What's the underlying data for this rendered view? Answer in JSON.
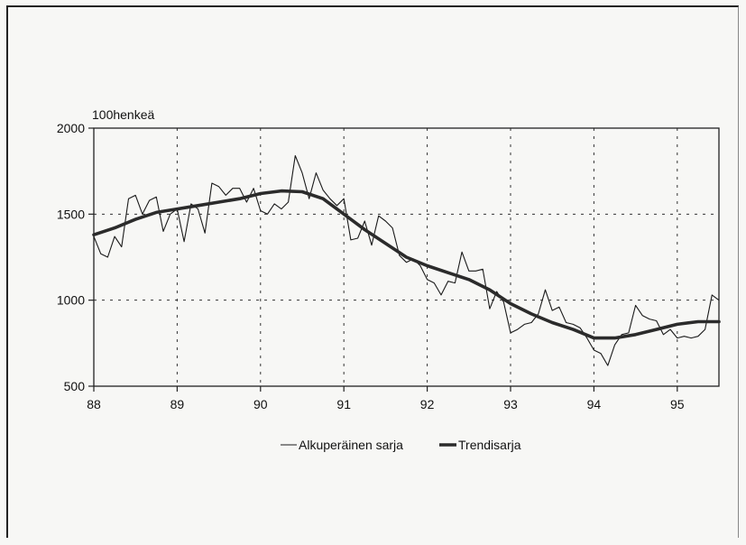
{
  "chart_data": {
    "type": "line",
    "title": "",
    "xlabel": "",
    "ylabel": "100henkeä",
    "xlim": [
      88,
      95.5
    ],
    "ylim": [
      500,
      2000
    ],
    "x_ticks": [
      88,
      89,
      90,
      91,
      92,
      93,
      94,
      95
    ],
    "x_tick_labels": [
      "88",
      "89",
      "90",
      "91",
      "92",
      "93",
      "94",
      "95"
    ],
    "y_ticks": [
      500,
      1000,
      1500,
      2000
    ],
    "y_tick_labels": [
      "500",
      "1000",
      "1500",
      "2000"
    ],
    "grid": "dashed",
    "legend_position": "bottom",
    "series": [
      {
        "name": "Alkuperäinen sarja",
        "style": "thin",
        "color": "#1a1a1a",
        "x": [
          88.0,
          88.083,
          88.167,
          88.25,
          88.333,
          88.417,
          88.5,
          88.583,
          88.667,
          88.75,
          88.833,
          88.917,
          89.0,
          89.083,
          89.167,
          89.25,
          89.333,
          89.417,
          89.5,
          89.583,
          89.667,
          89.75,
          89.833,
          89.917,
          90.0,
          90.083,
          90.167,
          90.25,
          90.333,
          90.417,
          90.5,
          90.583,
          90.667,
          90.75,
          90.833,
          90.917,
          91.0,
          91.083,
          91.167,
          91.25,
          91.333,
          91.417,
          91.5,
          91.583,
          91.667,
          91.75,
          91.833,
          91.917,
          92.0,
          92.083,
          92.167,
          92.25,
          92.333,
          92.417,
          92.5,
          92.583,
          92.667,
          92.75,
          92.833,
          92.917,
          93.0,
          93.083,
          93.167,
          93.25,
          93.333,
          93.417,
          93.5,
          93.583,
          93.667,
          93.75,
          93.833,
          93.917,
          94.0,
          94.083,
          94.167,
          94.25,
          94.333,
          94.417,
          94.5,
          94.583,
          94.667,
          94.75,
          94.833,
          94.917,
          95.0,
          95.083,
          95.167,
          95.25,
          95.333,
          95.417,
          95.5
        ],
        "y": [
          1370,
          1270,
          1250,
          1370,
          1310,
          1590,
          1610,
          1500,
          1580,
          1600,
          1400,
          1500,
          1530,
          1340,
          1560,
          1530,
          1390,
          1680,
          1660,
          1610,
          1650,
          1650,
          1570,
          1650,
          1520,
          1500,
          1560,
          1530,
          1570,
          1840,
          1740,
          1590,
          1740,
          1640,
          1590,
          1550,
          1590,
          1350,
          1360,
          1460,
          1320,
          1490,
          1460,
          1420,
          1260,
          1220,
          1240,
          1200,
          1120,
          1100,
          1030,
          1110,
          1100,
          1280,
          1170,
          1170,
          1180,
          950,
          1050,
          990,
          810,
          830,
          860,
          870,
          920,
          1060,
          940,
          960,
          870,
          860,
          840,
          780,
          710,
          690,
          620,
          740,
          800,
          810,
          970,
          910,
          890,
          880,
          800,
          830,
          780,
          790,
          780,
          790,
          830,
          1030,
          1000
        ]
      },
      {
        "name": "Trendisarja",
        "style": "thick",
        "color": "#2b2b2b",
        "x": [
          88.0,
          88.25,
          88.5,
          88.75,
          89.0,
          89.25,
          89.5,
          89.75,
          90.0,
          90.25,
          90.5,
          90.75,
          91.0,
          91.25,
          91.5,
          91.75,
          92.0,
          92.25,
          92.5,
          92.75,
          93.0,
          93.25,
          93.5,
          93.75,
          94.0,
          94.25,
          94.5,
          94.75,
          95.0,
          95.25,
          95.5
        ],
        "y": [
          1380,
          1420,
          1470,
          1510,
          1530,
          1550,
          1570,
          1590,
          1620,
          1635,
          1630,
          1590,
          1500,
          1410,
          1330,
          1250,
          1200,
          1160,
          1120,
          1060,
          980,
          920,
          870,
          830,
          780,
          780,
          800,
          830,
          860,
          875,
          875
        ]
      }
    ]
  },
  "legend": {
    "items": [
      {
        "label": "Alkuperäinen sarja"
      },
      {
        "label": "Trendisarja"
      }
    ]
  }
}
